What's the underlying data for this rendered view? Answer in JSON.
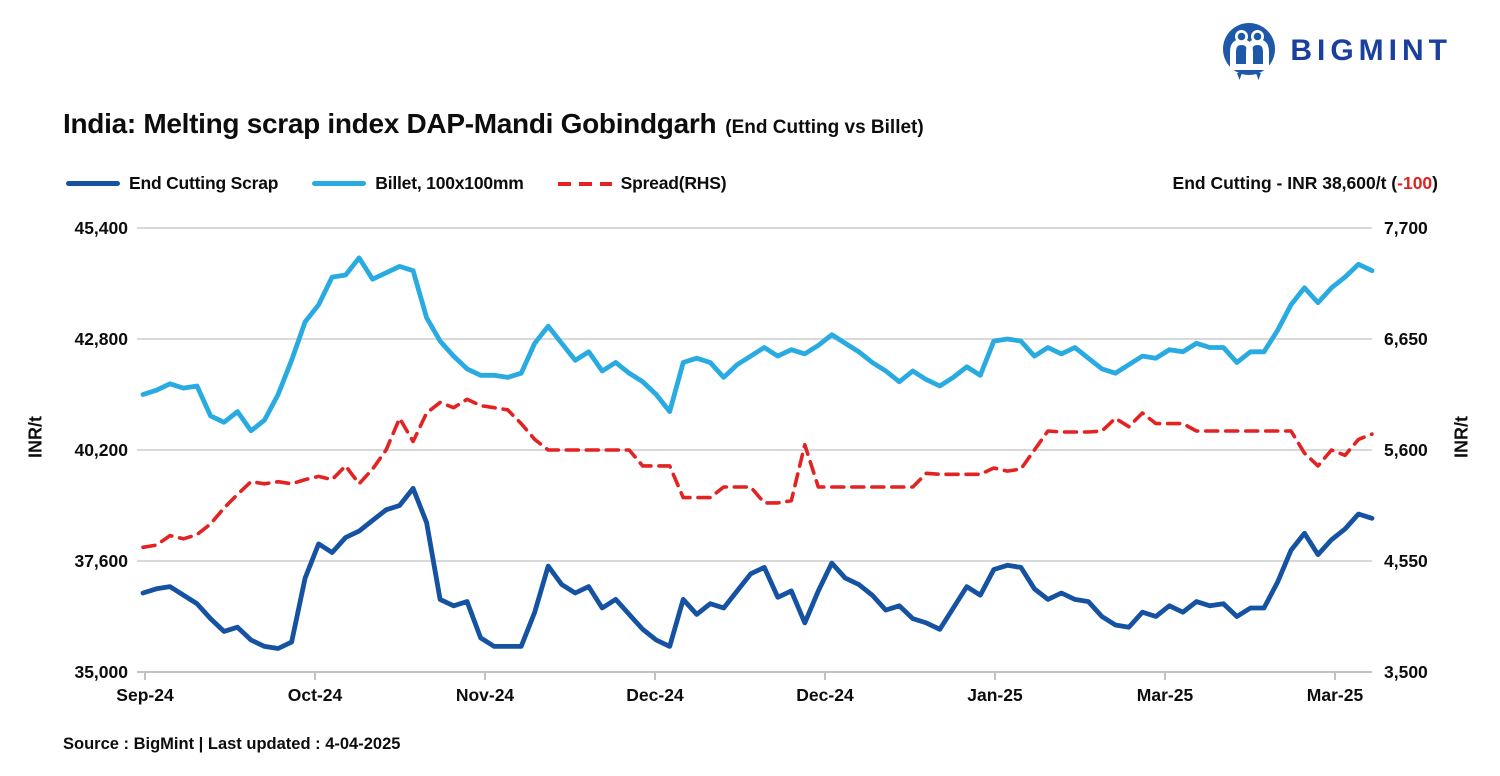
{
  "brand": {
    "name": "BIGMINT"
  },
  "header": {
    "title": "India: Melting scrap index DAP-Mandi Gobindgarh",
    "subtitle": "(End Cutting vs Billet)"
  },
  "annotation": {
    "prefix": "End Cutting - INR 38,600/t (",
    "change": "-100",
    "suffix": ")"
  },
  "source_note": "Source : BigMint | Last updated : 4-04-2025",
  "colors": {
    "brand_blue": "#1b3f9e",
    "logo_icon_blue": "#1d58ab",
    "end_cutting": "#1552a2",
    "billet": "#29abe2",
    "spread": "#e32222",
    "gridline": "#d9d9d9",
    "axis_line": "#c2c2c2"
  },
  "chart_data": {
    "type": "line",
    "title": "India: Melting scrap index DAP-Mandi Gobindgarh (End Cutting vs Billet)",
    "grid": "horizontal",
    "legend_position": "top-left",
    "x_labels": [
      "Sep-24",
      "Oct-24",
      "Nov-24",
      "Dec-24",
      "Dec-24",
      "Jan-25",
      "Mar-25",
      "Mar-25"
    ],
    "y_left": {
      "title": "INR/t",
      "min": 35000,
      "max": 45400,
      "ticks": [
        "45,400",
        "42,800",
        "40,200",
        "37,600",
        "35,000"
      ]
    },
    "y_right": {
      "title": "INR/t",
      "min": 3500,
      "max": 7700,
      "ticks": [
        "7,700",
        "6,650",
        "5,600",
        "4,550",
        "3,500"
      ]
    },
    "legend": [
      {
        "label": "End Cutting Scrap",
        "color": "#1552a2",
        "style": "solid"
      },
      {
        "label": "Billet, 100x100mm",
        "color": "#29abe2",
        "style": "solid"
      },
      {
        "label": "Spread(RHS)",
        "color": "#e32222",
        "style": "dashed"
      }
    ],
    "current_value_note": {
      "series": "End Cutting",
      "value_inr_t": 38600,
      "change": -100
    },
    "series": [
      {
        "name": "End Cutting Scrap",
        "axis": "left",
        "color": "#1552a2",
        "dash": false,
        "values": [
          36850,
          36950,
          37000,
          36800,
          36600,
          36250,
          35950,
          36050,
          35750,
          35600,
          35550,
          35700,
          37200,
          38000,
          37800,
          38150,
          38300,
          38550,
          38800,
          38900,
          39300,
          38500,
          36700,
          36550,
          36650,
          35800,
          35600,
          35600,
          35600,
          36400,
          37480,
          37050,
          36850,
          37000,
          36500,
          36700,
          36350,
          36000,
          35750,
          35600,
          36700,
          36350,
          36600,
          36500,
          36900,
          37300,
          37450,
          36750,
          36900,
          36150,
          36900,
          37550,
          37200,
          37050,
          36800,
          36450,
          36550,
          36250,
          36150,
          36000,
          36500,
          37000,
          36800,
          37400,
          37500,
          37450,
          36950,
          36700,
          36850,
          36700,
          36650,
          36300,
          36100,
          36050,
          36400,
          36300,
          36550,
          36400,
          36650,
          36550,
          36600,
          36300,
          36500,
          36500,
          37100,
          37850,
          38250,
          37750,
          38100,
          38350,
          38700,
          38600
        ]
      },
      {
        "name": "Billet, 100x100mm",
        "axis": "left",
        "color": "#29abe2",
        "dash": false,
        "values": [
          41500,
          41600,
          41750,
          41650,
          41700,
          41000,
          40850,
          41100,
          40650,
          40900,
          41500,
          42300,
          43200,
          43600,
          44250,
          44300,
          44700,
          44200,
          44350,
          44500,
          44400,
          43300,
          42750,
          42400,
          42100,
          41950,
          41950,
          41900,
          42000,
          42700,
          43100,
          42700,
          42300,
          42500,
          42050,
          42250,
          42000,
          41800,
          41500,
          41100,
          42250,
          42350,
          42250,
          41900,
          42200,
          42400,
          42600,
          42400,
          42550,
          42450,
          42650,
          42900,
          42700,
          42500,
          42250,
          42050,
          41800,
          42050,
          41850,
          41700,
          41900,
          42150,
          41950,
          42750,
          42800,
          42750,
          42400,
          42600,
          42450,
          42600,
          42350,
          42100,
          42000,
          42200,
          42400,
          42350,
          42550,
          42500,
          42700,
          42600,
          42600,
          42250,
          42500,
          42500,
          43000,
          43600,
          44000,
          43650,
          44000,
          44250,
          44550,
          44400
        ]
      },
      {
        "name": "Spread(RHS)",
        "axis": "right",
        "color": "#e32222",
        "dash": true,
        "values": [
          4680,
          4700,
          4790,
          4760,
          4800,
          4900,
          5050,
          5180,
          5300,
          5280,
          5300,
          5280,
          5320,
          5350,
          5320,
          5450,
          5280,
          5420,
          5600,
          5900,
          5680,
          5950,
          6050,
          6000,
          6080,
          6020,
          6000,
          5980,
          5850,
          5700,
          5600,
          5600,
          5600,
          5600,
          5600,
          5600,
          5600,
          5450,
          5450,
          5450,
          5150,
          5150,
          5150,
          5250,
          5250,
          5250,
          5100,
          5100,
          5120,
          5650,
          5250,
          5250,
          5250,
          5250,
          5250,
          5250,
          5250,
          5250,
          5380,
          5370,
          5370,
          5370,
          5370,
          5430,
          5400,
          5420,
          5600,
          5780,
          5770,
          5770,
          5770,
          5780,
          5900,
          5820,
          5950,
          5850,
          5850,
          5850,
          5780,
          5780,
          5780,
          5780,
          5780,
          5780,
          5780,
          5780,
          5570,
          5450,
          5600,
          5550,
          5700,
          5750
        ]
      }
    ]
  }
}
